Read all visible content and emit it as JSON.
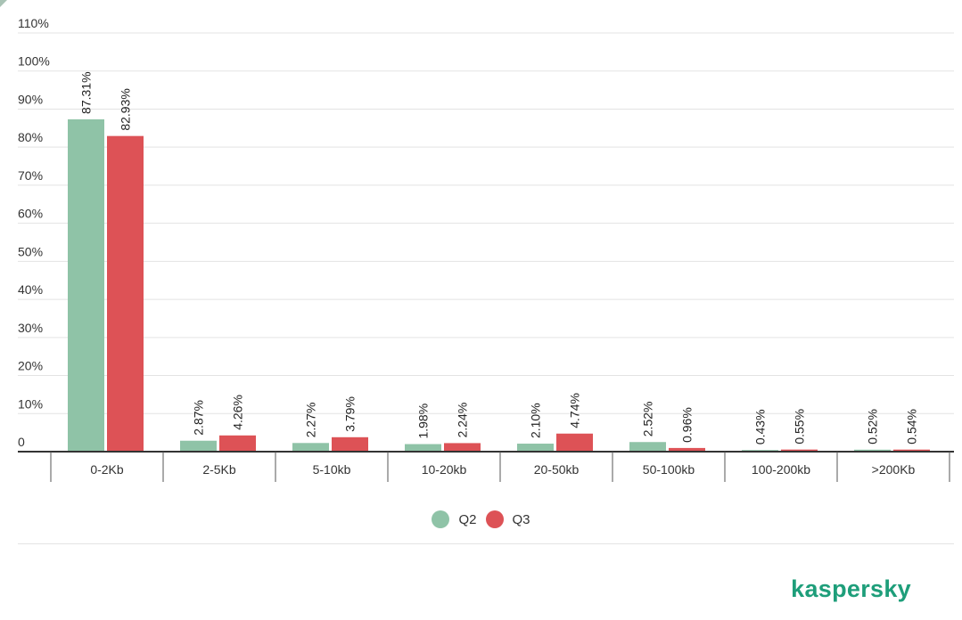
{
  "chart_data": {
    "type": "bar",
    "title": "",
    "xlabel": "",
    "ylabel": "",
    "categories": [
      "0-2Kb",
      "2-5Kb",
      "5-10kb",
      "10-20kb",
      "20-50kb",
      "50-100kb",
      "100-200kb",
      ">200Kb"
    ],
    "series": [
      {
        "name": "Q2",
        "color": "#8fc3a7",
        "values": [
          87.31,
          2.87,
          2.27,
          1.98,
          2.1,
          2.52,
          0.43,
          0.52
        ],
        "labels": [
          "87.31%",
          "2.87%",
          "2.27%",
          "1.98%",
          "2.10%",
          "2.52%",
          "0.43%",
          "0.52%"
        ]
      },
      {
        "name": "Q3",
        "color": "#dd5256",
        "values": [
          82.93,
          4.26,
          3.79,
          2.24,
          4.74,
          0.96,
          0.55,
          0.54
        ],
        "labels": [
          "82.93%",
          "4.26%",
          "3.79%",
          "2.24%",
          "4.74%",
          "0.96%",
          "0.55%",
          "0.54%"
        ]
      }
    ],
    "yticks": [
      0,
      10,
      20,
      30,
      40,
      50,
      60,
      70,
      80,
      90,
      100,
      110
    ],
    "ytick_labels": [
      "0",
      "10%",
      "20%",
      "30%",
      "40%",
      "50%",
      "60%",
      "70%",
      "80%",
      "90%",
      "100%",
      "110%"
    ],
    "ylim": [
      0,
      110
    ],
    "grid": true,
    "legend": "bottom-center"
  },
  "legend": {
    "q2": "Q2",
    "q3": "Q3"
  },
  "brand": {
    "name": "kaspersky",
    "color": "#1e9e7a"
  }
}
